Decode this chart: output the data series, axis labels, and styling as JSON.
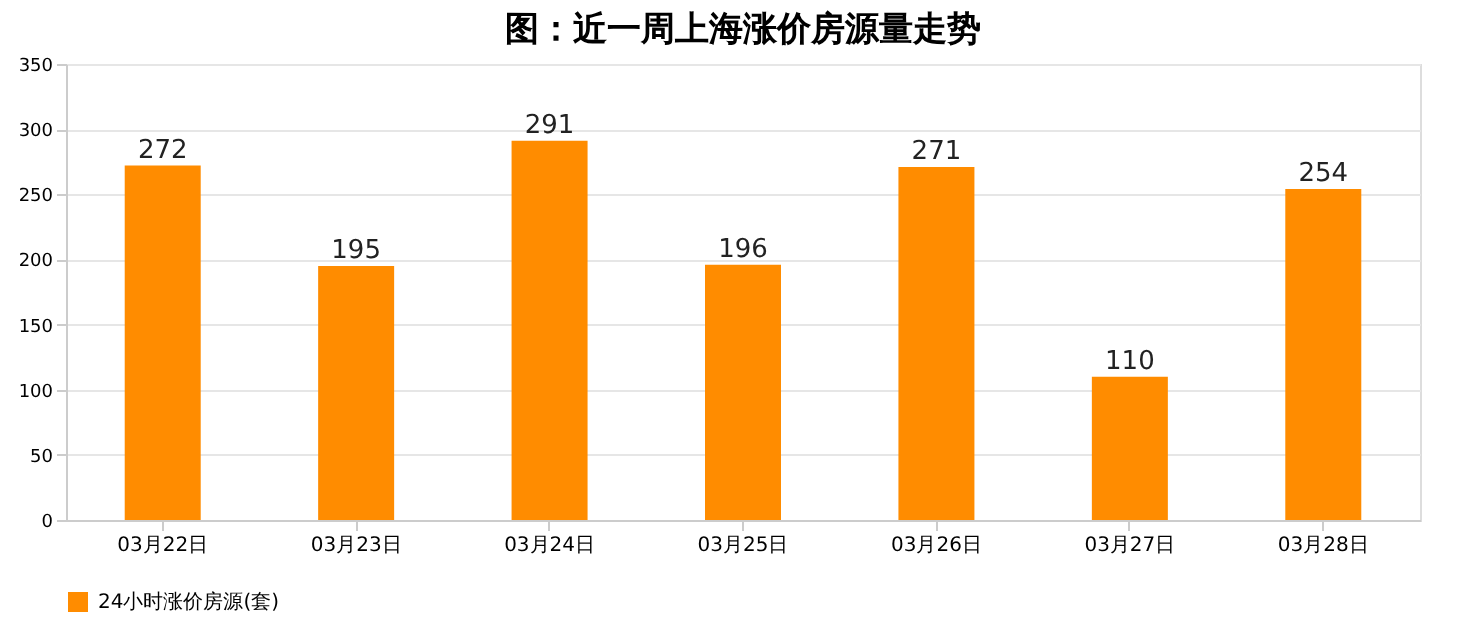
{
  "chart_data": {
    "type": "bar",
    "title": "图：近一周上海涨价房源量走势",
    "categories": [
      "03月22日",
      "03月23日",
      "03月24日",
      "03月25日",
      "03月26日",
      "03月27日",
      "03月28日"
    ],
    "series": [
      {
        "name": "24小时涨价房源(套)",
        "color": "#ff8c00",
        "values": [
          272,
          195,
          291,
          196,
          271,
          110,
          254
        ]
      }
    ],
    "ylim": [
      0,
      350
    ],
    "yticks": [
      0,
      50,
      100,
      150,
      200,
      250,
      300,
      350
    ],
    "grid": "y",
    "legend": "bottom",
    "data_labels": true
  }
}
